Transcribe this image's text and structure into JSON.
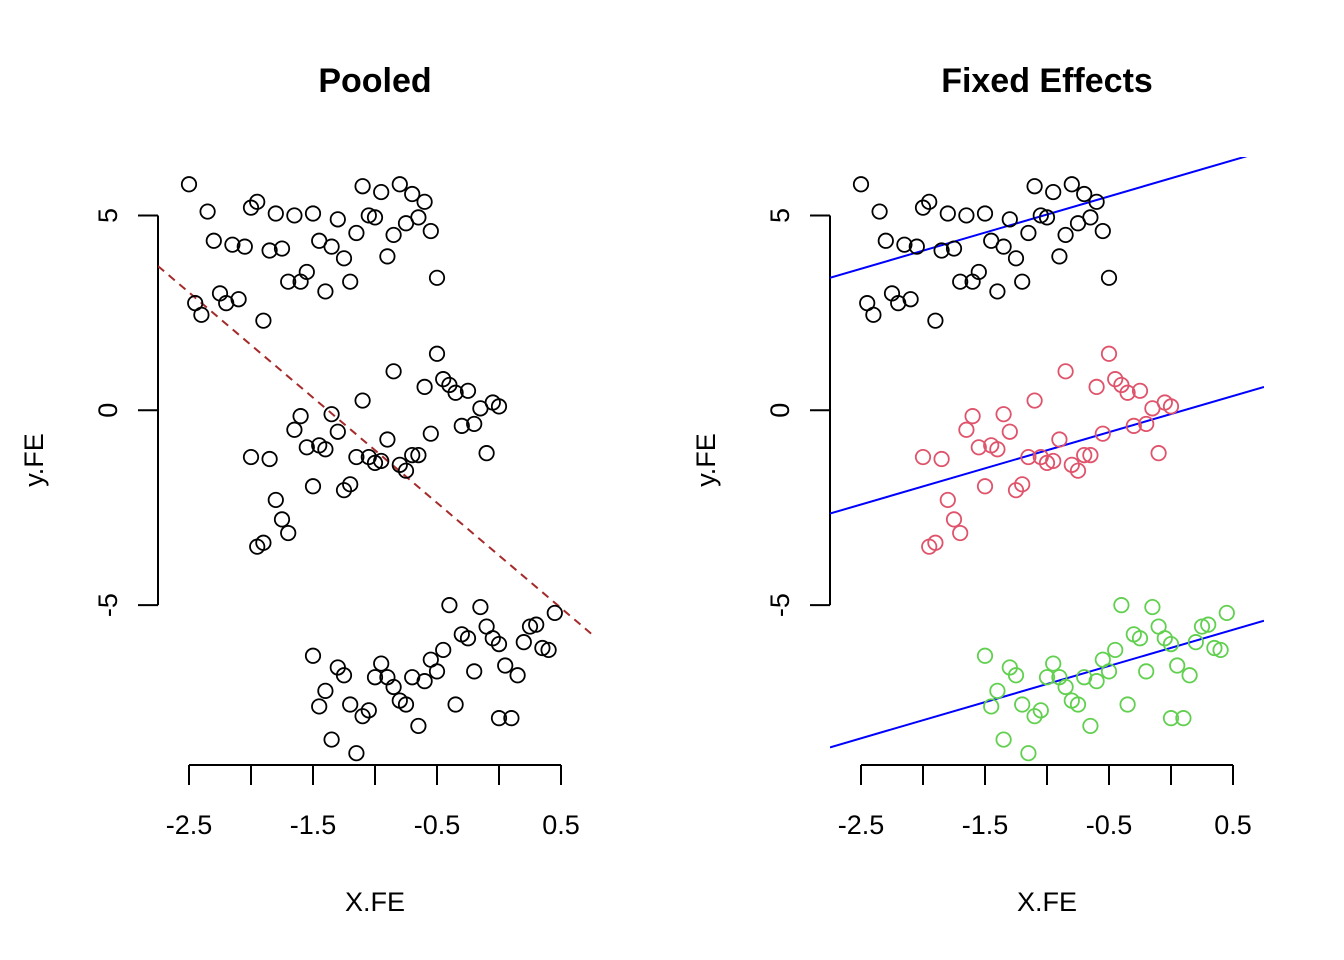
{
  "chart_data": [
    {
      "type": "scatter",
      "title": "Pooled",
      "xlabel": "X.FE",
      "ylabel": "y.FE",
      "xlim": [
        -2.75,
        0.75
      ],
      "ylim": [
        -9,
        6.5
      ],
      "x_ticks": [
        -2.5,
        -2,
        -1.5,
        -1,
        -0.5,
        0,
        0.5
      ],
      "x_tick_labels": [
        "-2.5",
        "",
        "-1.5",
        "",
        "-0.5",
        "",
        "0.5"
      ],
      "y_ticks": [
        -5,
        0,
        5
      ],
      "y_tick_labels": [
        "-5",
        "0",
        "5"
      ],
      "grid": false,
      "series": [
        {
          "color": "#000000",
          "points": [
            [
              -2.5,
              5.8
            ],
            [
              -2.45,
              2.75
            ],
            [
              -2.4,
              2.45
            ],
            [
              -2.35,
              5.1
            ],
            [
              -2.3,
              4.35
            ],
            [
              -2.25,
              3.0
            ],
            [
              -2.2,
              2.75
            ],
            [
              -2.15,
              4.25
            ],
            [
              -2.1,
              2.85
            ],
            [
              -2.05,
              4.2
            ],
            [
              -2.0,
              5.2
            ],
            [
              -1.95,
              5.35
            ],
            [
              -1.9,
              2.3
            ],
            [
              -1.85,
              4.1
            ],
            [
              -1.8,
              5.05
            ],
            [
              -1.75,
              4.15
            ],
            [
              -1.7,
              3.3
            ],
            [
              -1.65,
              5.0
            ],
            [
              -1.6,
              3.3
            ],
            [
              -1.55,
              3.55
            ],
            [
              -1.5,
              5.05
            ],
            [
              -1.45,
              4.35
            ],
            [
              -1.4,
              3.05
            ],
            [
              -1.35,
              4.2
            ],
            [
              -1.3,
              4.9
            ],
            [
              -1.25,
              3.9
            ],
            [
              -1.2,
              3.3
            ],
            [
              -1.15,
              4.55
            ],
            [
              -1.1,
              5.75
            ],
            [
              -1.05,
              5.0
            ],
            [
              -1.0,
              4.95
            ],
            [
              -0.95,
              5.6
            ],
            [
              -0.9,
              3.95
            ],
            [
              -0.85,
              4.5
            ],
            [
              -0.8,
              5.8
            ],
            [
              -0.75,
              4.8
            ],
            [
              -0.7,
              5.55
            ],
            [
              -0.65,
              4.95
            ],
            [
              -0.6,
              5.35
            ],
            [
              -0.55,
              4.6
            ],
            [
              -0.5,
              3.4
            ],
            [
              -2.0,
              -1.2
            ],
            [
              -1.95,
              -3.5
            ],
            [
              -1.9,
              -3.4
            ],
            [
              -1.85,
              -1.25
            ],
            [
              -1.8,
              -2.3
            ],
            [
              -1.75,
              -2.8
            ],
            [
              -1.7,
              -3.15
            ],
            [
              -1.65,
              -0.5
            ],
            [
              -1.6,
              -0.15
            ],
            [
              -1.55,
              -0.95
            ],
            [
              -1.5,
              -1.95
            ],
            [
              -1.45,
              -0.9
            ],
            [
              -1.4,
              -1.0
            ],
            [
              -1.35,
              -0.1
            ],
            [
              -1.3,
              -0.55
            ],
            [
              -1.25,
              -2.05
            ],
            [
              -1.2,
              -1.9
            ],
            [
              -1.15,
              -1.2
            ],
            [
              -1.1,
              0.25
            ],
            [
              -1.05,
              -1.2
            ],
            [
              -1.0,
              -1.35
            ],
            [
              -0.95,
              -1.3
            ],
            [
              -0.9,
              -0.75
            ],
            [
              -0.85,
              1.0
            ],
            [
              -0.8,
              -1.4
            ],
            [
              -0.75,
              -1.55
            ],
            [
              -0.7,
              -1.15
            ],
            [
              -0.65,
              -1.15
            ],
            [
              -0.6,
              0.6
            ],
            [
              -0.55,
              -0.6
            ],
            [
              -0.5,
              1.45
            ],
            [
              -0.45,
              0.8
            ],
            [
              -0.4,
              0.65
            ],
            [
              -0.35,
              0.45
            ],
            [
              -0.3,
              -0.4
            ],
            [
              -0.25,
              0.5
            ],
            [
              -0.2,
              -0.35
            ],
            [
              -0.15,
              0.05
            ],
            [
              -0.1,
              -1.1
            ],
            [
              -0.05,
              0.2
            ],
            [
              0.0,
              0.1
            ],
            [
              -1.5,
              -6.3
            ],
            [
              -1.45,
              -7.6
            ],
            [
              -1.4,
              -7.2
            ],
            [
              -1.35,
              -8.45
            ],
            [
              -1.3,
              -6.6
            ],
            [
              -1.25,
              -6.8
            ],
            [
              -1.2,
              -7.55
            ],
            [
              -1.15,
              -8.8
            ],
            [
              -1.1,
              -7.85
            ],
            [
              -1.05,
              -7.7
            ],
            [
              -1.0,
              -6.85
            ],
            [
              -0.95,
              -6.5
            ],
            [
              -0.9,
              -6.85
            ],
            [
              -0.85,
              -7.1
            ],
            [
              -0.8,
              -7.45
            ],
            [
              -0.75,
              -7.55
            ],
            [
              -0.7,
              -6.85
            ],
            [
              -0.65,
              -8.1
            ],
            [
              -0.6,
              -6.95
            ],
            [
              -0.55,
              -6.4
            ],
            [
              -0.5,
              -6.7
            ],
            [
              -0.45,
              -6.15
            ],
            [
              -0.4,
              -5.0
            ],
            [
              -0.35,
              -7.55
            ],
            [
              -0.3,
              -5.75
            ],
            [
              -0.25,
              -5.85
            ],
            [
              -0.2,
              -6.7
            ],
            [
              -0.15,
              -5.05
            ],
            [
              -0.1,
              -5.55
            ],
            [
              -0.05,
              -5.85
            ],
            [
              0.0,
              -7.9
            ],
            [
              0.05,
              -6.55
            ],
            [
              0.1,
              -7.9
            ],
            [
              0.15,
              -6.8
            ],
            [
              0.2,
              -5.95
            ],
            [
              0.25,
              -5.55
            ],
            [
              0.3,
              -5.5
            ],
            [
              0.35,
              -6.1
            ],
            [
              0.4,
              -6.15
            ],
            [
              0.45,
              -5.2
            ],
            [
              0.0,
              -6.0
            ]
          ]
        }
      ],
      "lines": [
        {
          "type": "dashed",
          "color": "#a52a2a",
          "from": [
            -2.75,
            3.7
          ],
          "to": [
            0.75,
            -5.75
          ]
        }
      ]
    },
    {
      "type": "scatter",
      "title": "Fixed Effects",
      "xlabel": "X.FE",
      "ylabel": "y.FE",
      "xlim": [
        -2.75,
        0.75
      ],
      "ylim": [
        -9,
        6.5
      ],
      "x_ticks": [
        -2.5,
        -2,
        -1.5,
        -1,
        -0.5,
        0,
        0.5
      ],
      "x_tick_labels": [
        "-2.5",
        "",
        "-1.5",
        "",
        "-0.5",
        "",
        "0.5"
      ],
      "y_ticks": [
        -5,
        0,
        5
      ],
      "y_tick_labels": [
        "-5",
        "0",
        "5"
      ],
      "grid": false,
      "series": [
        {
          "color": "#000000",
          "points": [
            [
              -2.5,
              5.8
            ],
            [
              -2.45,
              2.75
            ],
            [
              -2.4,
              2.45
            ],
            [
              -2.35,
              5.1
            ],
            [
              -2.3,
              4.35
            ],
            [
              -2.25,
              3.0
            ],
            [
              -2.2,
              2.75
            ],
            [
              -2.15,
              4.25
            ],
            [
              -2.1,
              2.85
            ],
            [
              -2.05,
              4.2
            ],
            [
              -2.0,
              5.2
            ],
            [
              -1.95,
              5.35
            ],
            [
              -1.9,
              2.3
            ],
            [
              -1.85,
              4.1
            ],
            [
              -1.8,
              5.05
            ],
            [
              -1.75,
              4.15
            ],
            [
              -1.7,
              3.3
            ],
            [
              -1.65,
              5.0
            ],
            [
              -1.6,
              3.3
            ],
            [
              -1.55,
              3.55
            ],
            [
              -1.5,
              5.05
            ],
            [
              -1.45,
              4.35
            ],
            [
              -1.4,
              3.05
            ],
            [
              -1.35,
              4.2
            ],
            [
              -1.3,
              4.9
            ],
            [
              -1.25,
              3.9
            ],
            [
              -1.2,
              3.3
            ],
            [
              -1.15,
              4.55
            ],
            [
              -1.1,
              5.75
            ],
            [
              -1.05,
              5.0
            ],
            [
              -1.0,
              4.95
            ],
            [
              -0.95,
              5.6
            ],
            [
              -0.9,
              3.95
            ],
            [
              -0.85,
              4.5
            ],
            [
              -0.8,
              5.8
            ],
            [
              -0.75,
              4.8
            ],
            [
              -0.7,
              5.55
            ],
            [
              -0.65,
              4.95
            ],
            [
              -0.6,
              5.35
            ],
            [
              -0.55,
              4.6
            ],
            [
              -0.5,
              3.4
            ]
          ]
        },
        {
          "color": "#df536b",
          "points": [
            [
              -2.0,
              -1.2
            ],
            [
              -1.95,
              -3.5
            ],
            [
              -1.9,
              -3.4
            ],
            [
              -1.85,
              -1.25
            ],
            [
              -1.8,
              -2.3
            ],
            [
              -1.75,
              -2.8
            ],
            [
              -1.7,
              -3.15
            ],
            [
              -1.65,
              -0.5
            ],
            [
              -1.6,
              -0.15
            ],
            [
              -1.55,
              -0.95
            ],
            [
              -1.5,
              -1.95
            ],
            [
              -1.45,
              -0.9
            ],
            [
              -1.4,
              -1.0
            ],
            [
              -1.35,
              -0.1
            ],
            [
              -1.3,
              -0.55
            ],
            [
              -1.25,
              -2.05
            ],
            [
              -1.2,
              -1.9
            ],
            [
              -1.15,
              -1.2
            ],
            [
              -1.1,
              0.25
            ],
            [
              -1.05,
              -1.2
            ],
            [
              -1.0,
              -1.35
            ],
            [
              -0.95,
              -1.3
            ],
            [
              -0.9,
              -0.75
            ],
            [
              -0.85,
              1.0
            ],
            [
              -0.8,
              -1.4
            ],
            [
              -0.75,
              -1.55
            ],
            [
              -0.7,
              -1.15
            ],
            [
              -0.65,
              -1.15
            ],
            [
              -0.6,
              0.6
            ],
            [
              -0.55,
              -0.6
            ],
            [
              -0.5,
              1.45
            ],
            [
              -0.45,
              0.8
            ],
            [
              -0.4,
              0.65
            ],
            [
              -0.35,
              0.45
            ],
            [
              -0.3,
              -0.4
            ],
            [
              -0.25,
              0.5
            ],
            [
              -0.2,
              -0.35
            ],
            [
              -0.15,
              0.05
            ],
            [
              -0.1,
              -1.1
            ],
            [
              -0.05,
              0.2
            ],
            [
              0.0,
              0.1
            ]
          ]
        },
        {
          "color": "#61d04f",
          "points": [
            [
              -1.5,
              -6.3
            ],
            [
              -1.45,
              -7.6
            ],
            [
              -1.4,
              -7.2
            ],
            [
              -1.35,
              -8.45
            ],
            [
              -1.3,
              -6.6
            ],
            [
              -1.25,
              -6.8
            ],
            [
              -1.2,
              -7.55
            ],
            [
              -1.15,
              -8.8
            ],
            [
              -1.1,
              -7.85
            ],
            [
              -1.05,
              -7.7
            ],
            [
              -1.0,
              -6.85
            ],
            [
              -0.95,
              -6.5
            ],
            [
              -0.9,
              -6.85
            ],
            [
              -0.85,
              -7.1
            ],
            [
              -0.8,
              -7.45
            ],
            [
              -0.75,
              -7.55
            ],
            [
              -0.7,
              -6.85
            ],
            [
              -0.65,
              -8.1
            ],
            [
              -0.6,
              -6.95
            ],
            [
              -0.55,
              -6.4
            ],
            [
              -0.5,
              -6.7
            ],
            [
              -0.45,
              -6.15
            ],
            [
              -0.4,
              -5.0
            ],
            [
              -0.35,
              -7.55
            ],
            [
              -0.3,
              -5.75
            ],
            [
              -0.25,
              -5.85
            ],
            [
              -0.2,
              -6.7
            ],
            [
              -0.15,
              -5.05
            ],
            [
              -0.1,
              -5.55
            ],
            [
              -0.05,
              -5.85
            ],
            [
              0.0,
              -7.9
            ],
            [
              0.05,
              -6.55
            ],
            [
              0.1,
              -7.9
            ],
            [
              0.15,
              -6.8
            ],
            [
              0.2,
              -5.95
            ],
            [
              0.25,
              -5.55
            ],
            [
              0.3,
              -5.5
            ],
            [
              0.35,
              -6.1
            ],
            [
              0.4,
              -6.15
            ],
            [
              0.45,
              -5.2
            ],
            [
              0.0,
              -6.0
            ]
          ]
        }
      ],
      "lines": [
        {
          "type": "solid",
          "color": "#0000ff",
          "from": [
            -2.75,
            3.4
          ],
          "to": [
            0.75,
            6.65
          ]
        },
        {
          "type": "solid",
          "color": "#0000ff",
          "from": [
            -2.75,
            -2.65
          ],
          "to": [
            0.75,
            0.6
          ]
        },
        {
          "type": "solid",
          "color": "#0000ff",
          "from": [
            -2.75,
            -8.65
          ],
          "to": [
            0.75,
            -5.4
          ]
        }
      ]
    }
  ]
}
